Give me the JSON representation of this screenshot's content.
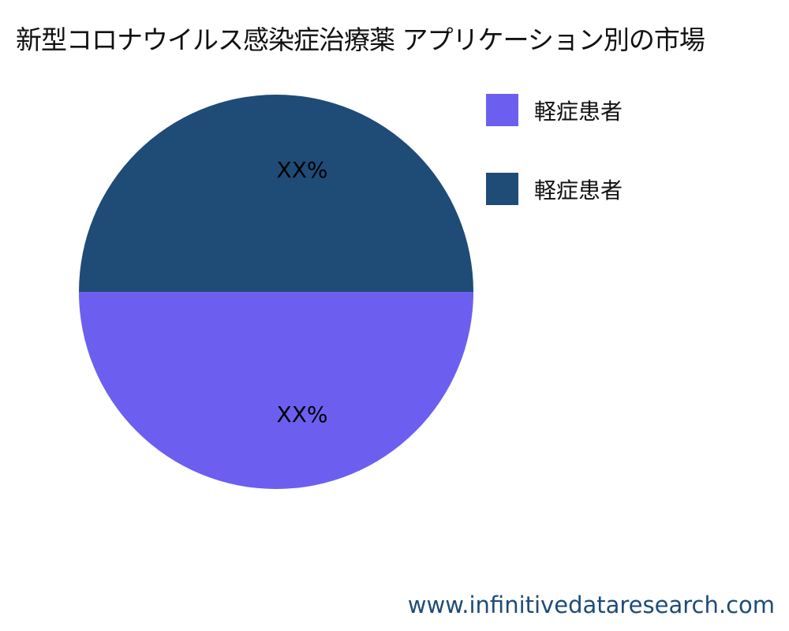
{
  "chart_data": {
    "type": "pie",
    "title": "新型コロナウイルス感染症治療薬 アプリケーション別の市場",
    "slices": [
      {
        "name": "軽症患者",
        "value": 50,
        "label": "XX%",
        "color": "#6c5ff0"
      },
      {
        "name": "軽症患者",
        "value": 50,
        "label": "XX%",
        "color": "#1f4b77"
      }
    ],
    "legend_position": "right"
  },
  "footer": {
    "url": "www.infinitivedataresearch.com"
  }
}
